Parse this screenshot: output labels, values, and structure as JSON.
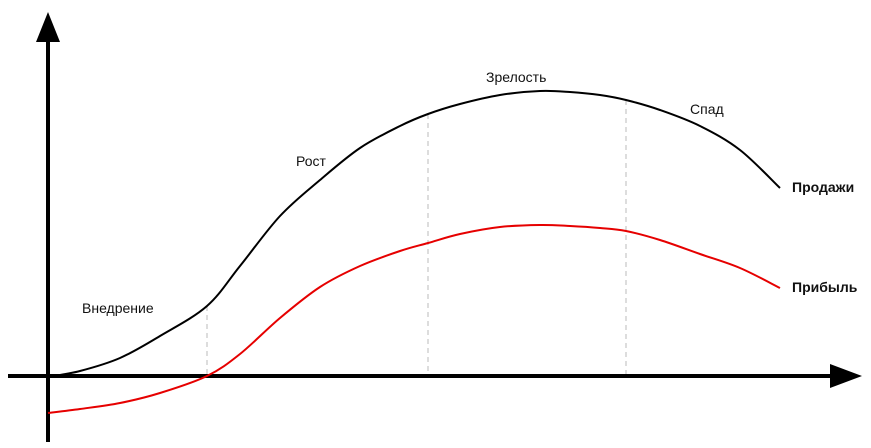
{
  "chart_data": {
    "type": "line",
    "title": "",
    "xlabel": "",
    "ylabel": "",
    "grid": false,
    "stages": [
      {
        "label": "Внедрение",
        "end": 207
      },
      {
        "label": "Рост",
        "end": 428
      },
      {
        "label": "Зрелость",
        "end": 626
      },
      {
        "label": "Спад",
        "end": null
      }
    ],
    "series": [
      {
        "name": "Продажи",
        "color": "#000000",
        "points": [
          [
            48,
            -1
          ],
          [
            80,
            5
          ],
          [
            120,
            18
          ],
          [
            160,
            40
          ],
          [
            207,
            70
          ],
          [
            240,
            110
          ],
          [
            280,
            160
          ],
          [
            320,
            196
          ],
          [
            360,
            228
          ],
          [
            400,
            250
          ],
          [
            428,
            262
          ],
          [
            460,
            272
          ],
          [
            500,
            281
          ],
          [
            540,
            285
          ],
          [
            570,
            284
          ],
          [
            600,
            281
          ],
          [
            626,
            276
          ],
          [
            660,
            266
          ],
          [
            700,
            250
          ],
          [
            740,
            226
          ],
          [
            780,
            188
          ]
        ]
      },
      {
        "name": "Прибыль",
        "color": "#e60000",
        "points": [
          [
            48,
            -37
          ],
          [
            80,
            -33
          ],
          [
            120,
            -27
          ],
          [
            160,
            -17
          ],
          [
            207,
            0
          ],
          [
            240,
            22
          ],
          [
            280,
            58
          ],
          [
            320,
            89
          ],
          [
            360,
            110
          ],
          [
            400,
            125
          ],
          [
            428,
            133
          ],
          [
            460,
            142
          ],
          [
            500,
            149
          ],
          [
            540,
            151
          ],
          [
            570,
            150
          ],
          [
            600,
            148
          ],
          [
            626,
            145
          ],
          [
            660,
            136
          ],
          [
            700,
            122
          ],
          [
            740,
            108
          ],
          [
            780,
            88
          ]
        ]
      }
    ]
  }
}
